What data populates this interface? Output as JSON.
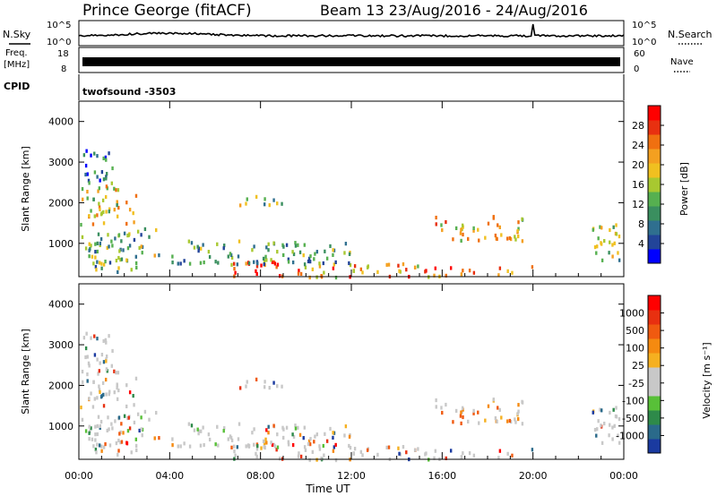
{
  "header": {
    "title": "Prince George (fitACF)",
    "beam_info": "Beam 13 23/Aug/2016 - 24/Aug/2016"
  },
  "summary_panel": {
    "nsky_label": "N.Sky",
    "nsky_ticks": [
      "10^5",
      "10^0"
    ],
    "nsearch_label": "N.Search",
    "nsearch_ticks": [
      "10^5",
      "10^0"
    ],
    "freq_label": "Freq.",
    "freq_unit": "[MHz]",
    "freq_ticks": [
      "18",
      "8"
    ],
    "nave_label": "Nave",
    "nave_ticks": [
      "60",
      "0"
    ],
    "cpid_label": "CPID",
    "cpid_value": "twofsound  -3503"
  },
  "chart_data": [
    {
      "type": "heatmap",
      "name": "power",
      "ylabel": "Slant Range [km]",
      "xlabel": "",
      "x_ticks": [
        "00:00",
        "04:00",
        "08:00",
        "12:00",
        "16:00",
        "20:00",
        "00:00"
      ],
      "xlim_hours": [
        0,
        24
      ],
      "y_ticks": [
        1000,
        2000,
        3000,
        4000
      ],
      "ylim_km": [
        180,
        4500
      ],
      "colorbar": {
        "label": "Power [dB]",
        "ticks": [
          "28",
          "24",
          "20",
          "16",
          "12",
          "8",
          "4"
        ],
        "colors": [
          "#0000ff",
          "#224499",
          "#2f6f8f",
          "#3a8f5f",
          "#56b050",
          "#a8c830",
          "#f0c020",
          "#f4a020",
          "#f07010",
          "#e83010",
          "#ff0000"
        ]
      },
      "echo_regions": [
        {
          "t": [
            0.0,
            2.5
          ],
          "r": [
            1500,
            2500
          ],
          "level": 0.55
        },
        {
          "t": [
            0.0,
            1.5
          ],
          "r": [
            2500,
            3400
          ],
          "level": 0.25
        },
        {
          "t": [
            0.0,
            3.5
          ],
          "r": [
            300,
            1400
          ],
          "level": 0.4
        },
        {
          "t": [
            6.5,
            9.5
          ],
          "r": [
            200,
            600
          ],
          "level": 0.95
        },
        {
          "t": [
            9.5,
            16.0
          ],
          "r": [
            200,
            550
          ],
          "level": 0.7
        },
        {
          "t": [
            16.0,
            20.0
          ],
          "r": [
            250,
            500
          ],
          "level": 0.75
        },
        {
          "t": [
            15.5,
            19.5
          ],
          "r": [
            1100,
            1700
          ],
          "level": 0.6
        },
        {
          "t": [
            22.5,
            24.0
          ],
          "r": [
            600,
            1500
          ],
          "level": 0.5
        },
        {
          "t": [
            4.0,
            12.0
          ],
          "r": [
            500,
            1100
          ],
          "level": 0.35
        },
        {
          "t": [
            7.0,
            9.0
          ],
          "r": [
            1900,
            2200
          ],
          "level": 0.45
        }
      ]
    },
    {
      "type": "heatmap",
      "name": "velocity",
      "ylabel": "Slant Range [km]",
      "xlabel": "Time UT",
      "x_ticks": [
        "00:00",
        "04:00",
        "08:00",
        "12:00",
        "16:00",
        "20:00",
        "00:00"
      ],
      "xlim_hours": [
        0,
        24
      ],
      "y_ticks": [
        1000,
        2000,
        3000,
        4000
      ],
      "ylim_km": [
        180,
        4500
      ],
      "colorbar": {
        "label": "Velocity [m s⁻¹]",
        "ticks": [
          "1000",
          "500",
          "100",
          "25",
          "-25",
          "-100",
          "-500",
          "-1000"
        ],
        "colors": [
          "#1a3aa0",
          "#2a6a8a",
          "#2e8a4a",
          "#58c038",
          "#c8c8c8",
          "#c8c8c8",
          "#f5b020",
          "#f58a10",
          "#f05a10",
          "#e83010",
          "#ff0000"
        ]
      }
    }
  ]
}
